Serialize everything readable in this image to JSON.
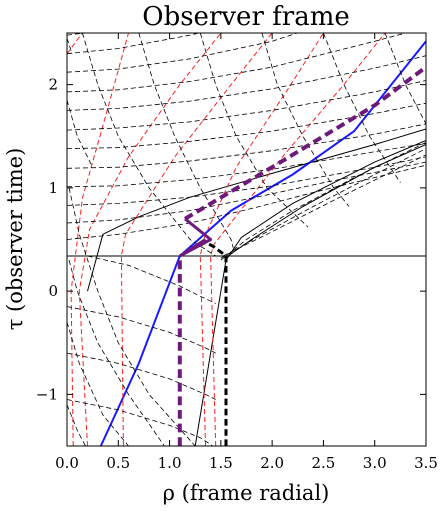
{
  "chart_data": {
    "type": "line",
    "title": "Observer frame",
    "xlabel": "ρ (frame radial)",
    "ylabel": "τ (observer time)",
    "xlim": [
      0.0,
      3.5
    ],
    "ylim": [
      -1.5,
      2.5
    ],
    "xticks": [
      "0.0",
      "0.5",
      "1.0",
      "1.5",
      "2.0",
      "2.5",
      "3.0",
      "3.5"
    ],
    "yticks": [
      {
        "value": -1,
        "label": "−1"
      },
      {
        "value": 0,
        "label": "0"
      },
      {
        "value": 1,
        "label": "1"
      },
      {
        "value": 2,
        "label": "2"
      }
    ],
    "grid": false,
    "legend": "none",
    "colors": {
      "black": "#000000",
      "red": "#ff2020",
      "blue": "#1a1aff",
      "purple": "#6e1a7c"
    },
    "series": [
      {
        "style": "solid",
        "color": "black",
        "width": 1,
        "points": [
          [
            0,
            0.34
          ],
          [
            3.5,
            0.34
          ]
        ]
      },
      {
        "style": "solid",
        "color": "black",
        "width": 1,
        "points": [
          [
            0.2,
            0.0
          ],
          [
            0.35,
            0.55
          ],
          [
            0.7,
            0.72
          ],
          [
            1.2,
            0.91
          ],
          [
            2.0,
            1.14
          ],
          [
            3.0,
            1.42
          ],
          [
            3.5,
            1.57
          ]
        ]
      },
      {
        "style": "solid",
        "color": "black",
        "width": 1,
        "points": [
          [
            1.25,
            -1.5
          ],
          [
            1.4,
            -0.6
          ],
          [
            1.5,
            0.0
          ],
          [
            1.55,
            0.3
          ],
          [
            1.7,
            0.52
          ],
          [
            2.2,
            0.85
          ],
          [
            3.0,
            1.25
          ],
          [
            3.5,
            1.46
          ]
        ]
      },
      {
        "style": "solid",
        "color": "black",
        "width": 1,
        "points": [
          [
            1.57,
            0.34
          ],
          [
            1.8,
            0.5
          ],
          [
            2.3,
            0.82
          ],
          [
            3.0,
            1.2
          ],
          [
            3.5,
            1.42
          ]
        ]
      },
      {
        "style": "solid",
        "color": "blue",
        "width": 2,
        "points": [
          [
            0.33,
            -1.5
          ],
          [
            0.7,
            -0.7
          ],
          [
            1.1,
            0.34
          ],
          [
            1.6,
            0.78
          ],
          [
            2.2,
            1.13
          ],
          [
            2.8,
            1.55
          ],
          [
            3.5,
            2.42
          ]
        ]
      },
      {
        "style": "dashed",
        "color": "red",
        "width": 1,
        "points": [
          [
            0.2,
            -1.5
          ],
          [
            0.12,
            0.0
          ],
          [
            0.22,
            0.6
          ],
          [
            0.6,
            1.3
          ],
          [
            1.1,
            2.0
          ],
          [
            1.5,
            2.5
          ]
        ]
      },
      {
        "style": "dashed",
        "color": "red",
        "width": 1,
        "points": [
          [
            0.06,
            -1.5
          ],
          [
            0.04,
            0.0
          ],
          [
            0.15,
            0.9
          ],
          [
            0.35,
            1.6
          ],
          [
            0.6,
            2.5
          ]
        ]
      },
      {
        "style": "dashed",
        "color": "red",
        "width": 1,
        "points": [
          [
            0.0,
            2.3
          ],
          [
            0.15,
            2.5
          ]
        ]
      },
      {
        "style": "dashed",
        "color": "red",
        "width": 1,
        "points": [
          [
            0.55,
            -1.5
          ],
          [
            0.53,
            0.34
          ],
          [
            0.57,
            0.55
          ],
          [
            1.05,
            1.3
          ],
          [
            1.6,
            2.0
          ],
          [
            2.0,
            2.5
          ]
        ]
      },
      {
        "style": "dashed",
        "color": "red",
        "width": 1,
        "points": [
          [
            1.35,
            -1.5
          ],
          [
            1.3,
            0.34
          ],
          [
            1.33,
            0.5
          ],
          [
            1.65,
            1.2
          ],
          [
            2.15,
            1.95
          ],
          [
            2.5,
            2.5
          ]
        ]
      },
      {
        "style": "dashed",
        "color": "red",
        "width": 1,
        "points": [
          [
            1.45,
            -1.5
          ],
          [
            1.4,
            0.34
          ],
          [
            1.43,
            0.45
          ],
          [
            2.1,
            1.3
          ],
          [
            2.7,
            2.0
          ],
          [
            3.1,
            2.5
          ]
        ]
      },
      {
        "style": "dashed",
        "color": "black",
        "width": 0.8,
        "points": [
          [
            0.0,
            2.48
          ],
          [
            0.6,
            2.55
          ]
        ]
      },
      {
        "style": "dashed",
        "color": "black",
        "width": 0.8,
        "points": [
          [
            0.0,
            2.3
          ],
          [
            0.5,
            2.35
          ],
          [
            1.2,
            2.48
          ],
          [
            1.5,
            2.55
          ]
        ]
      },
      {
        "style": "dashed",
        "color": "black",
        "width": 0.8,
        "points": [
          [
            0.0,
            2.12
          ],
          [
            0.5,
            2.15
          ],
          [
            1.2,
            2.25
          ],
          [
            2.0,
            2.42
          ],
          [
            2.4,
            2.55
          ]
        ]
      },
      {
        "style": "dashed",
        "color": "black",
        "width": 0.8,
        "points": [
          [
            0.0,
            1.93
          ],
          [
            0.5,
            1.95
          ],
          [
            1.2,
            2.03
          ],
          [
            2.0,
            2.17
          ],
          [
            3.0,
            2.42
          ],
          [
            3.3,
            2.5
          ]
        ]
      },
      {
        "style": "dashed",
        "color": "black",
        "width": 0.8,
        "points": [
          [
            0.0,
            1.75
          ],
          [
            0.5,
            1.77
          ],
          [
            1.2,
            1.84
          ],
          [
            2.0,
            1.96
          ],
          [
            3.0,
            2.16
          ],
          [
            3.5,
            2.28
          ]
        ]
      },
      {
        "style": "dashed",
        "color": "black",
        "width": 0.8,
        "points": [
          [
            0.0,
            1.56
          ],
          [
            0.5,
            1.58
          ],
          [
            1.2,
            1.64
          ],
          [
            2.0,
            1.75
          ],
          [
            3.0,
            1.93
          ],
          [
            3.5,
            2.04
          ]
        ]
      },
      {
        "style": "dashed",
        "color": "black",
        "width": 0.8,
        "points": [
          [
            0.0,
            1.38
          ],
          [
            0.5,
            1.39
          ],
          [
            1.2,
            1.45
          ],
          [
            2.0,
            1.55
          ],
          [
            3.0,
            1.72
          ],
          [
            3.5,
            1.82
          ]
        ]
      },
      {
        "style": "dashed",
        "color": "black",
        "width": 0.8,
        "points": [
          [
            0.0,
            1.19
          ],
          [
            0.5,
            1.2
          ],
          [
            1.2,
            1.26
          ],
          [
            2.0,
            1.36
          ],
          [
            3.0,
            1.52
          ],
          [
            3.5,
            1.62
          ]
        ]
      },
      {
        "style": "dashed",
        "color": "black",
        "width": 0.8,
        "points": [
          [
            0.0,
            1.01
          ],
          [
            0.5,
            1.02
          ],
          [
            1.2,
            1.08
          ],
          [
            2.0,
            1.18
          ],
          [
            3.0,
            1.35
          ],
          [
            3.5,
            1.43
          ]
        ]
      },
      {
        "style": "dashed",
        "color": "black",
        "width": 0.8,
        "points": [
          [
            0.0,
            0.83
          ],
          [
            0.5,
            0.85
          ],
          [
            1.2,
            0.91
          ],
          [
            2.0,
            1.02
          ],
          [
            3.0,
            1.2
          ],
          [
            3.5,
            1.3
          ]
        ]
      },
      {
        "style": "dashed",
        "color": "black",
        "width": 0.8,
        "points": [
          [
            0.0,
            0.66
          ],
          [
            0.5,
            0.69
          ],
          [
            1.2,
            0.78
          ],
          [
            1.8,
            0.9
          ],
          [
            2.5,
            1.05
          ],
          [
            3.5,
            1.25
          ]
        ]
      },
      {
        "style": "dashed",
        "color": "black",
        "width": 0.8,
        "points": [
          [
            0.0,
            0.5
          ],
          [
            0.5,
            0.55
          ],
          [
            1.2,
            0.66
          ],
          [
            1.8,
            0.8
          ],
          [
            2.5,
            0.98
          ],
          [
            3.5,
            1.22
          ]
        ]
      },
      {
        "style": "dashed",
        "color": "black",
        "width": 0.8,
        "points": [
          [
            0.15,
            2.5
          ],
          [
            0.3,
            2.0
          ],
          [
            0.5,
            1.5
          ],
          [
            0.8,
            1.0
          ],
          [
            1.2,
            0.5
          ],
          [
            1.45,
            0.34
          ]
        ]
      },
      {
        "style": "dashed",
        "color": "black",
        "width": 0.8,
        "points": [
          [
            0.7,
            2.5
          ],
          [
            0.85,
            2.0
          ],
          [
            1.05,
            1.5
          ],
          [
            1.3,
            1.0
          ],
          [
            1.6,
            0.5
          ],
          [
            1.62,
            0.42
          ]
        ]
      },
      {
        "style": "dashed",
        "color": "black",
        "width": 0.8,
        "points": [
          [
            1.3,
            2.5
          ],
          [
            1.45,
            2.0
          ],
          [
            1.65,
            1.5
          ],
          [
            1.95,
            1.0
          ],
          [
            2.35,
            0.62
          ]
        ]
      },
      {
        "style": "dashed",
        "color": "black",
        "width": 0.8,
        "points": [
          [
            1.9,
            2.5
          ],
          [
            2.05,
            2.0
          ],
          [
            2.3,
            1.5
          ],
          [
            2.6,
            1.0
          ],
          [
            2.75,
            0.82
          ]
        ]
      },
      {
        "style": "dashed",
        "color": "black",
        "width": 0.8,
        "points": [
          [
            2.5,
            2.5
          ],
          [
            2.7,
            2.0
          ],
          [
            2.95,
            1.5
          ],
          [
            3.25,
            1.05
          ]
        ]
      },
      {
        "style": "dashed",
        "color": "black",
        "width": 0.8,
        "points": [
          [
            3.1,
            2.5
          ],
          [
            3.3,
            2.0
          ],
          [
            3.5,
            1.62
          ]
        ]
      },
      {
        "style": "dashed",
        "color": "black",
        "width": 0.8,
        "points": [
          [
            0.02,
            1.0
          ],
          [
            0.12,
            0.55
          ],
          [
            0.3,
            0.0
          ],
          [
            0.5,
            -0.5
          ],
          [
            0.8,
            -1.0
          ],
          [
            1.25,
            -1.5
          ]
        ]
      },
      {
        "style": "dashed",
        "color": "black",
        "width": 0.8,
        "points": [
          [
            0.0,
            1.85
          ],
          [
            0.1,
            1.5
          ],
          [
            0.25,
            1.2
          ]
        ]
      },
      {
        "style": "dashed",
        "color": "black",
        "width": 0.8,
        "points": [
          [
            0.0,
            2.45
          ],
          [
            0.05,
            2.3
          ]
        ]
      },
      {
        "style": "dashed",
        "color": "black",
        "width": 0.8,
        "points": [
          [
            0.02,
            0.3
          ],
          [
            0.1,
            0.0
          ],
          [
            0.3,
            -0.5
          ],
          [
            0.6,
            -1.0
          ],
          [
            0.95,
            -1.5
          ]
        ]
      },
      {
        "style": "dashed",
        "color": "black",
        "width": 0.8,
        "points": [
          [
            0.0,
            -0.3
          ],
          [
            0.12,
            -0.7
          ],
          [
            0.35,
            -1.2
          ],
          [
            0.6,
            -1.5
          ]
        ]
      },
      {
        "style": "dashed",
        "color": "black",
        "width": 0.8,
        "points": [
          [
            0.0,
            -1.1
          ],
          [
            0.1,
            -1.35
          ],
          [
            0.18,
            -1.5
          ]
        ]
      },
      {
        "style": "dashed",
        "color": "black",
        "width": 0.8,
        "points": [
          [
            0.2,
            0.34
          ],
          [
            0.6,
            0.25
          ],
          [
            1.1,
            0.05
          ],
          [
            1.3,
            -0.05
          ],
          [
            1.45,
            -0.12
          ]
        ]
      },
      {
        "style": "dashed",
        "color": "black",
        "width": 0.8,
        "points": [
          [
            0.0,
            -0.15
          ],
          [
            0.5,
            -0.25
          ],
          [
            1.0,
            -0.4
          ],
          [
            1.35,
            -0.55
          ],
          [
            1.45,
            -0.6
          ]
        ]
      },
      {
        "style": "dashed",
        "color": "black",
        "width": 0.8,
        "points": [
          [
            0.0,
            -0.6
          ],
          [
            0.5,
            -0.7
          ],
          [
            1.0,
            -0.85
          ],
          [
            1.35,
            -1.0
          ],
          [
            1.45,
            -1.05
          ]
        ]
      },
      {
        "style": "dashed",
        "color": "black",
        "width": 0.8,
        "points": [
          [
            0.0,
            -1.05
          ],
          [
            0.5,
            -1.15
          ],
          [
            1.0,
            -1.3
          ],
          [
            1.3,
            -1.42
          ],
          [
            1.42,
            -1.5
          ]
        ]
      },
      {
        "style": "dashed",
        "color": "black",
        "width": 0.8,
        "points": [
          [
            1.5,
            0.3
          ],
          [
            1.75,
            0.5
          ],
          [
            2.2,
            0.78
          ],
          [
            2.8,
            1.1
          ],
          [
            3.5,
            1.44
          ]
        ]
      },
      {
        "style": "dashed",
        "color": "black",
        "width": 0.8,
        "points": [
          [
            1.5,
            0.32
          ],
          [
            1.85,
            0.52
          ],
          [
            2.4,
            0.82
          ],
          [
            3.0,
            1.13
          ],
          [
            3.5,
            1.38
          ]
        ]
      },
      {
        "style": "dashed",
        "color": "black",
        "width": 0.8,
        "points": [
          [
            1.52,
            0.34
          ],
          [
            1.95,
            0.55
          ],
          [
            2.6,
            0.88
          ],
          [
            3.5,
            1.32
          ]
        ]
      },
      {
        "style": "dashed",
        "color": "black",
        "width": 3,
        "points": [
          [
            1.55,
            -1.5
          ],
          [
            1.55,
            0.34
          ],
          [
            1.43,
            0.43
          ],
          [
            1.34,
            0.48
          ]
        ]
      },
      {
        "style": "solid",
        "color": "purple",
        "width": 3,
        "points": [
          [
            1.1,
            0.34
          ],
          [
            1.1,
            0.34
          ],
          [
            1.35,
            0.5
          ]
        ]
      },
      {
        "style": "solid",
        "color": "purple",
        "width": 3,
        "points": [
          [
            1.1,
            0.34
          ],
          [
            1.4,
            0.5
          ],
          [
            1.15,
            0.7
          ]
        ]
      },
      {
        "style": "dashed",
        "color": "purple",
        "width": 4,
        "points": [
          [
            1.1,
            -1.5
          ],
          [
            1.1,
            0.34
          ]
        ]
      },
      {
        "style": "dashed",
        "color": "purple",
        "width": 4,
        "points": [
          [
            1.15,
            0.7
          ],
          [
            2.0,
            1.2
          ],
          [
            3.0,
            1.8
          ],
          [
            3.5,
            2.17
          ]
        ]
      }
    ]
  }
}
